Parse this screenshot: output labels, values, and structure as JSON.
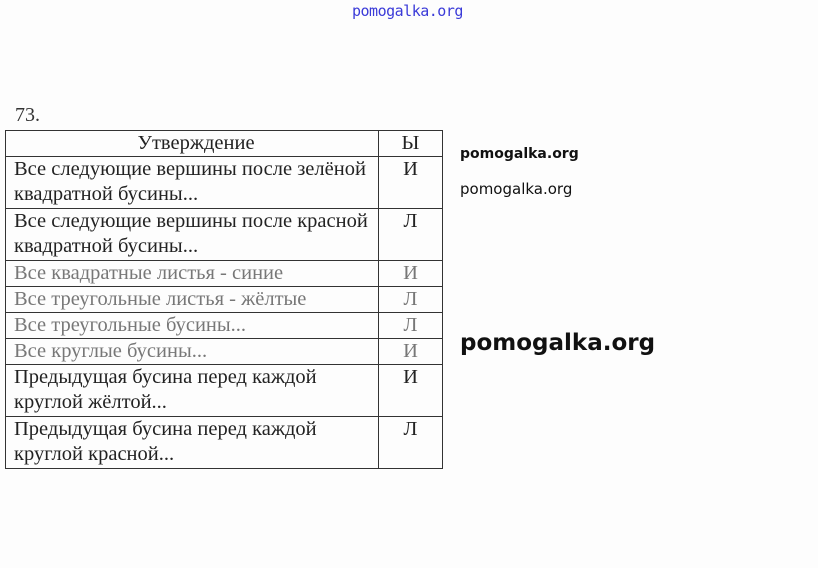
{
  "watermark": "pomogalka.org",
  "task_number": "73.",
  "table": {
    "headers": [
      "Утверждение",
      "Ы"
    ],
    "rows": [
      {
        "statement": "Все следующие вершины после зелёной квадратной бусины...",
        "value": "И"
      },
      {
        "statement": "Все следующие вершины после красной квадратной бусины...",
        "value": "Л"
      },
      {
        "statement": "Все квадратные листья - синие",
        "value": "И"
      },
      {
        "statement": "Все треугольные листья - жёлтые",
        "value": "Л"
      },
      {
        "statement": "Все треугольные бусины...",
        "value": "Л"
      },
      {
        "statement": "Все круглые бусины...",
        "value": "И"
      },
      {
        "statement": "Предыдущая бусина перед каждой круглой жёлтой...",
        "value": "И"
      },
      {
        "statement": "Предыдущая бусина перед каждой круглой красной...",
        "value": "Л"
      }
    ]
  }
}
